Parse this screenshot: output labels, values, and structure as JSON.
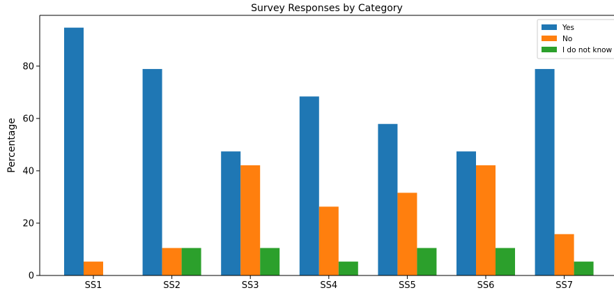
{
  "chart_data": {
    "type": "bar",
    "title": "Survey Responses by Category",
    "xlabel": "",
    "ylabel": "Percentage",
    "categories": [
      "SS1",
      "SS2",
      "SS3",
      "SS4",
      "SS5",
      "SS6",
      "SS7"
    ],
    "series": [
      {
        "name": "Yes",
        "color": "#1f77b4",
        "values": [
          94.7,
          78.9,
          47.4,
          68.4,
          57.9,
          47.4,
          78.9
        ]
      },
      {
        "name": "No",
        "color": "#ff7f0e",
        "values": [
          5.3,
          10.5,
          42.1,
          26.3,
          31.6,
          42.1,
          15.8
        ]
      },
      {
        "name": "I do not know",
        "color": "#2ca02c",
        "values": [
          0,
          10.5,
          10.5,
          5.3,
          10.5,
          10.5,
          5.3
        ]
      }
    ],
    "yticks": [
      0,
      20,
      40,
      60,
      80
    ],
    "ylim": [
      0,
      99.4
    ],
    "grid": false,
    "legend_position": "top-right"
  }
}
